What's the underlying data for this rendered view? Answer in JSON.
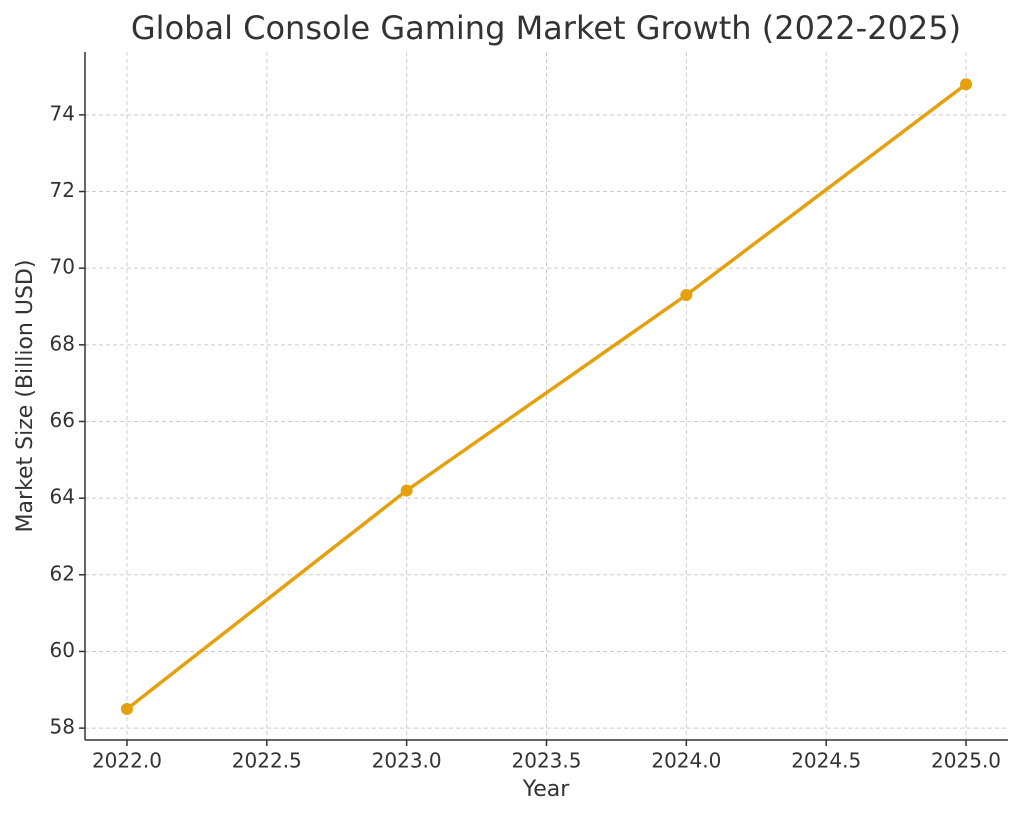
{
  "chart_data": {
    "type": "line",
    "title": "Global Console Gaming Market Growth (2022-2025)",
    "x_label": "Year",
    "y_label": "Market Size (Billion USD)",
    "x": [
      2022,
      2023,
      2024,
      2025
    ],
    "series": [
      {
        "name": "Market Size",
        "color": "#e5a00d",
        "values": [
          58.5,
          64.2,
          69.3,
          74.8
        ]
      }
    ],
    "xlim": [
      2021.85,
      2025.15
    ],
    "ylim": [
      57.69,
      75.64
    ],
    "xticks": [
      {
        "value": 2022,
        "label": "2022.0"
      },
      {
        "value": 2022.5,
        "label": "2022.5"
      },
      {
        "value": 2023,
        "label": "2023.0"
      },
      {
        "value": 2023.5,
        "label": "2023.5"
      },
      {
        "value": 2024,
        "label": "2024.0"
      },
      {
        "value": 2024.5,
        "label": "2024.5"
      },
      {
        "value": 2025,
        "label": "2025.0"
      }
    ],
    "yticks": [
      58,
      60,
      62,
      64,
      66,
      68,
      70,
      72,
      74
    ],
    "grid": true
  }
}
